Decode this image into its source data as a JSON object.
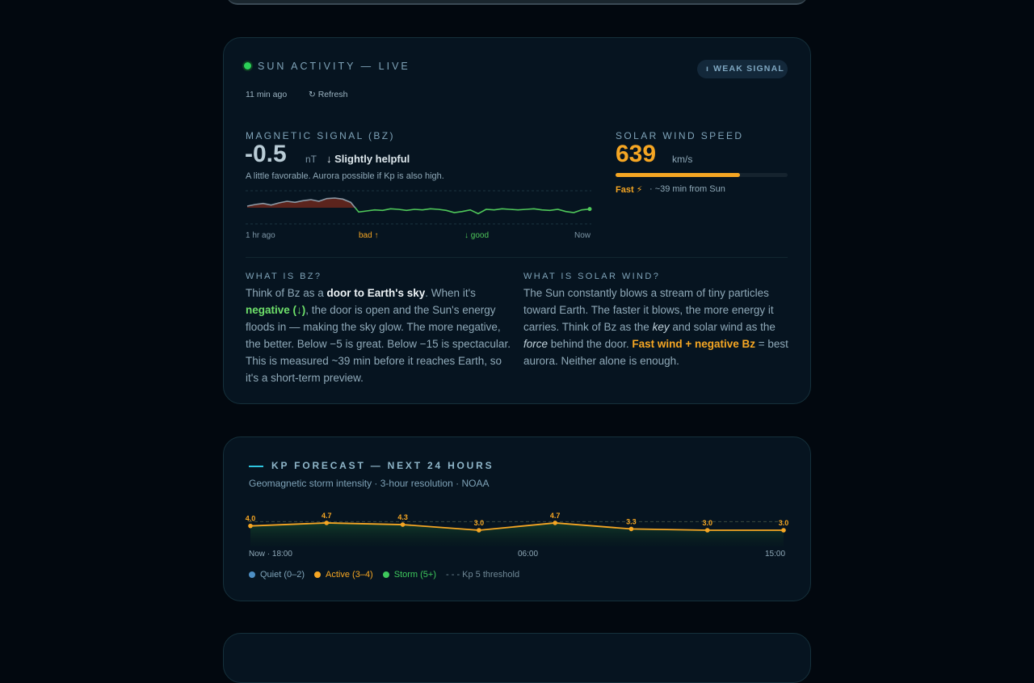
{
  "sun_card": {
    "title": "SUN ACTIVITY — LIVE",
    "badge": "WEAK SIGNAL",
    "updated": "11 min ago",
    "refresh": "Refresh",
    "bz": {
      "label": "MAGNETIC SIGNAL (BZ)",
      "value": -0.5,
      "unit": "nT",
      "verdict": "↓ Slightly helpful",
      "note": "A little favorable. Aurora possible if Kp is also high.",
      "chart": {
        "values": [
          0.6,
          1.2,
          1.6,
          1.0,
          1.8,
          2.4,
          2.0,
          2.6,
          3.0,
          2.4,
          3.4,
          3.6,
          3.2,
          2.0,
          -1.6,
          -1.2,
          -0.8,
          -1.0,
          -0.4,
          -0.6,
          -1.0,
          -0.6,
          -0.8,
          -0.4,
          -0.6,
          -1.0,
          -1.8,
          -1.4,
          -0.8,
          -2.2,
          -0.6,
          -0.8,
          -0.4,
          -0.6,
          -0.8,
          -0.6,
          -0.4,
          -0.8,
          -1.0,
          -0.6,
          -1.4,
          -1.8,
          -0.8,
          -0.5
        ],
        "ylim": [
          -6,
          6
        ],
        "labels": [
          "1 hr ago",
          "bad ↑",
          "↓ good",
          "Now"
        ]
      }
    },
    "wind": {
      "label": "SOLAR WIND SPEED",
      "value": 639,
      "unit": "km/s",
      "xlim": [
        0,
        885
      ],
      "fast": "Fast ⚡",
      "eta": "· ~39 min from Sun"
    },
    "explain": [
      {
        "heading": "WHAT IS BZ?",
        "segments": [
          {
            "text": "Think of Bz as a "
          },
          {
            "text": "door to Earth's sky",
            "style": "bold"
          },
          {
            "text": ". When it's "
          },
          {
            "text": "negative (↓)",
            "style": "green"
          },
          {
            "text": ", the door is open and the Sun's energy floods in — making the sky glow. The more negative, the better. Below −5 is great. Below −15 is spectacular. This is measured ~39 min before it reaches Earth, so it's a short-term preview."
          }
        ]
      },
      {
        "heading": "WHAT IS SOLAR WIND?",
        "segments": [
          {
            "text": "The Sun constantly blows a stream of tiny particles toward Earth. The faster it blows, the more energy it carries. Think of Bz as the "
          },
          {
            "text": "key",
            "style": "italic"
          },
          {
            "text": " and solar wind as the "
          },
          {
            "text": "force",
            "style": "italic"
          },
          {
            "text": " behind the door. "
          },
          {
            "text": "Fast wind + negative Bz",
            "style": "orange"
          },
          {
            "text": " = best aurora. Neither alone is enough."
          }
        ]
      }
    ]
  },
  "kp_card": {
    "title": "KP FORECAST — NEXT 24 HOURS",
    "subtitle": "Geomagnetic storm intensity · 3-hour resolution · NOAA",
    "chart": {
      "values": [
        4.0,
        4.7,
        4.3,
        3.0,
        4.7,
        3.3,
        3.0,
        3.0
      ],
      "value_labels": [
        "4.0",
        "4.7",
        "4.3",
        "3.0",
        "4.7",
        "3.3",
        "3.0",
        "3.0"
      ],
      "ylim": [
        0,
        9
      ],
      "threshold": 5,
      "color": "#f5a623",
      "x_labels": [
        "Now · 18:00",
        "06:00",
        "15:00"
      ]
    },
    "legend": [
      {
        "name": "Quiet (0–2)",
        "color": "#4d8fc4"
      },
      {
        "name": "Active (3–4)",
        "color": "#f5a623"
      },
      {
        "name": "Storm (5+)",
        "color": "#3ec85c"
      }
    ],
    "threshold_label": "- - - Kp 5 threshold"
  }
}
